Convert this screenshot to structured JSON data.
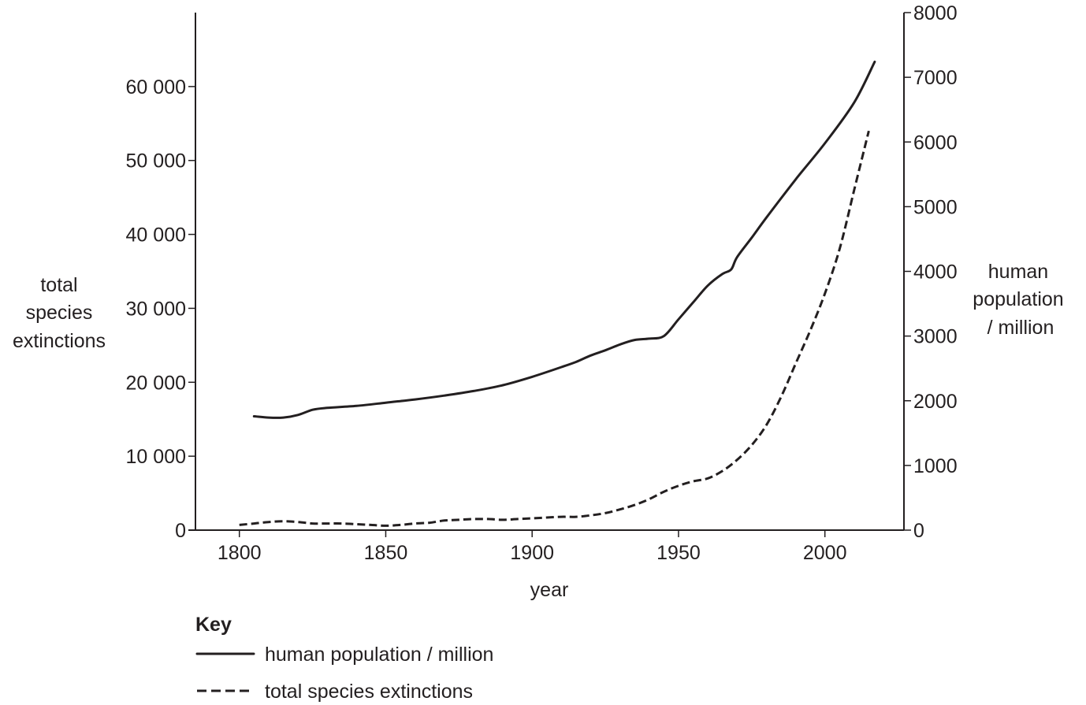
{
  "chart_data": {
    "type": "line",
    "xlabel": "year",
    "ylabel_left": [
      "total",
      "species",
      "extinctions"
    ],
    "ylabel_right": [
      "human",
      "population",
      "/ million"
    ],
    "x_ticks": [
      "1800",
      "1850",
      "1900",
      "1950",
      "2000"
    ],
    "y_left_ticks": [
      "0",
      "10 000",
      "20 000",
      "30 000",
      "40 000",
      "50 000",
      "60 000"
    ],
    "y_right_ticks": [
      "0",
      "1000",
      "2000",
      "3000",
      "4000",
      "5000",
      "6000",
      "7000",
      "8000"
    ],
    "xlim": [
      1785,
      2027
    ],
    "ylim_left": [
      0,
      70000
    ],
    "ylim_right": [
      0,
      8000
    ],
    "series": [
      {
        "name": "human population / million",
        "axis": "right",
        "style": "solid",
        "x": [
          1805,
          1810,
          1815,
          1820,
          1825,
          1830,
          1840,
          1850,
          1860,
          1870,
          1880,
          1890,
          1900,
          1910,
          1915,
          1920,
          1925,
          1930,
          1935,
          1940,
          1945,
          1950,
          1955,
          1960,
          1965,
          1968,
          1970,
          1975,
          1980,
          1990,
          2000,
          2010,
          2017
        ],
        "y": [
          1760,
          1740,
          1740,
          1780,
          1860,
          1890,
          1920,
          1970,
          2020,
          2080,
          2150,
          2240,
          2370,
          2520,
          2600,
          2700,
          2780,
          2870,
          2940,
          2960,
          3000,
          3260,
          3520,
          3780,
          3960,
          4030,
          4220,
          4520,
          4830,
          5420,
          5980,
          6610,
          7240
        ]
      },
      {
        "name": "total species extinctions",
        "axis": "left",
        "style": "dashed",
        "x": [
          1800,
          1805,
          1810,
          1815,
          1820,
          1825,
          1830,
          1835,
          1840,
          1845,
          1850,
          1855,
          1860,
          1865,
          1870,
          1875,
          1880,
          1885,
          1890,
          1895,
          1900,
          1905,
          1910,
          1915,
          1920,
          1925,
          1930,
          1935,
          1940,
          1945,
          1950,
          1955,
          1960,
          1965,
          1970,
          1975,
          1980,
          1985,
          1990,
          1995,
          2000,
          2005,
          2010,
          2015
        ],
        "y": [
          700,
          900,
          1100,
          1200,
          1100,
          900,
          900,
          900,
          800,
          700,
          600,
          700,
          900,
          1000,
          1300,
          1400,
          1500,
          1500,
          1400,
          1500,
          1600,
          1700,
          1800,
          1800,
          2000,
          2300,
          2800,
          3400,
          4200,
          5200,
          6000,
          6600,
          7000,
          8000,
          9500,
          11500,
          14200,
          18000,
          22500,
          27000,
          32000,
          38000,
          46000,
          54000
        ]
      }
    ]
  },
  "key": {
    "title": "Key",
    "items": [
      "human population / million",
      "total species extinctions"
    ]
  }
}
